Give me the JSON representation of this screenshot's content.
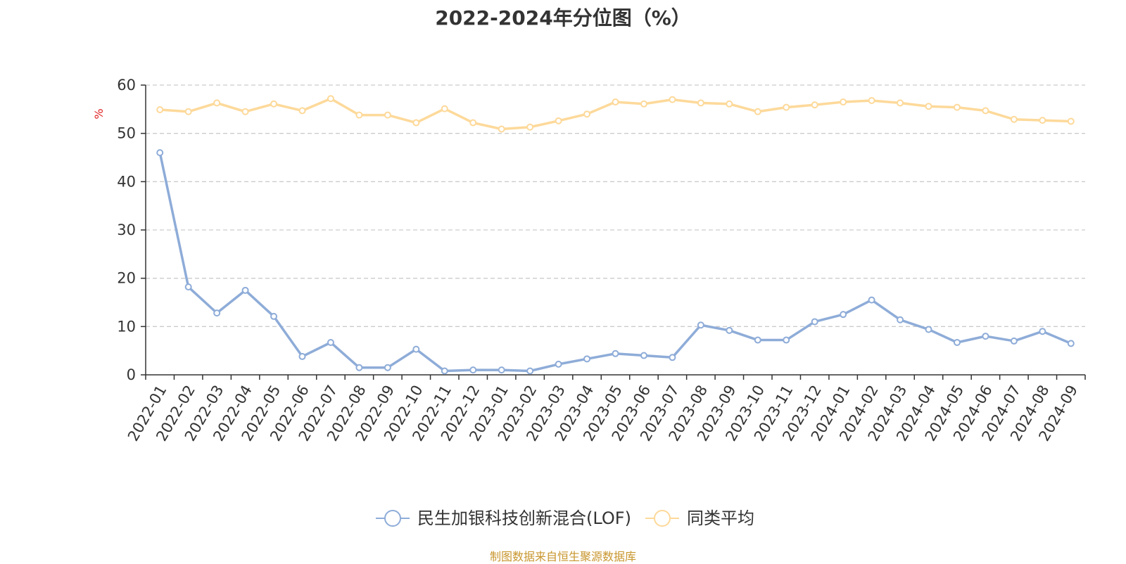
{
  "chart_data": {
    "type": "line",
    "title": "2022-2024年分位图（%）",
    "ylabel": "%",
    "xlabel": "",
    "ylim": [
      0,
      60
    ],
    "yticks": [
      0,
      10,
      20,
      30,
      40,
      50,
      60
    ],
    "grid": true,
    "legend_position": "bottom",
    "categories": [
      "2022-01",
      "2022-02",
      "2022-03",
      "2022-04",
      "2022-05",
      "2022-06",
      "2022-07",
      "2022-08",
      "2022-09",
      "2022-10",
      "2022-11",
      "2022-12",
      "2023-01",
      "2023-02",
      "2023-03",
      "2023-04",
      "2023-05",
      "2023-06",
      "2023-07",
      "2023-08",
      "2023-09",
      "2023-10",
      "2023-11",
      "2023-12",
      "2024-01",
      "2024-02",
      "2024-03",
      "2024-04",
      "2024-05",
      "2024-06",
      "2024-07",
      "2024-08",
      "2024-09"
    ],
    "series": [
      {
        "name": "民生加银科技创新混合(LOF)",
        "color": "#8eacd8",
        "values": [
          46.0,
          18.2,
          12.8,
          17.5,
          12.1,
          3.8,
          6.7,
          1.5,
          1.5,
          5.3,
          0.8,
          1.0,
          1.0,
          0.8,
          2.2,
          3.3,
          4.4,
          4.0,
          3.6,
          10.3,
          9.2,
          7.2,
          7.2,
          11.0,
          12.5,
          15.5,
          11.4,
          9.4,
          6.7,
          8.0,
          7.0,
          9.0,
          6.5
        ]
      },
      {
        "name": "同类平均",
        "color": "#fdd99a",
        "values": [
          54.9,
          54.5,
          56.3,
          54.5,
          56.1,
          54.7,
          57.2,
          53.8,
          53.8,
          52.2,
          55.1,
          52.2,
          50.9,
          51.3,
          52.6,
          54.0,
          56.5,
          56.1,
          57.0,
          56.3,
          56.1,
          54.5,
          55.4,
          55.9,
          56.5,
          56.8,
          56.3,
          55.6,
          55.4,
          54.7,
          52.9,
          52.7,
          52.5
        ]
      }
    ]
  },
  "footer": {
    "source": "制图数据来自恒生聚源数据库"
  }
}
